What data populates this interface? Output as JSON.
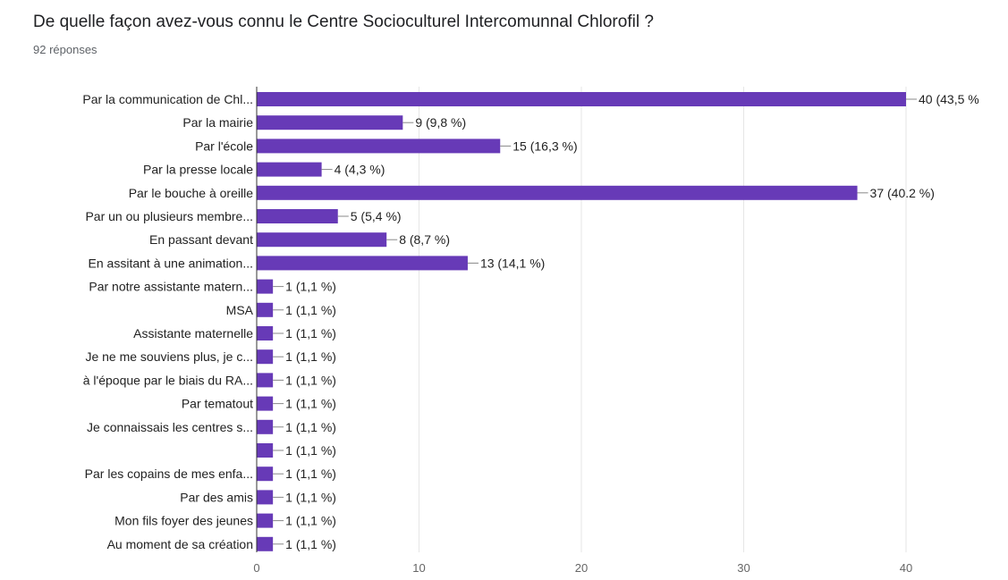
{
  "chart_data": {
    "type": "bar",
    "orientation": "horizontal",
    "title": "De quelle façon avez-vous connu le Centre Socioculturel Intercomunnal Chlorofil ?",
    "subtitle": "92 réponses",
    "categories": [
      "Par la communication de Chl...",
      "Par la mairie",
      "Par l'école",
      "Par la presse locale",
      "Par le bouche à oreille",
      "Par un ou plusieurs membre...",
      "En passant devant",
      "En assitant à une animation...",
      "Par notre assistante matern...",
      "MSA",
      "Assistante maternelle",
      "Je ne me souviens plus, je c...",
      "à l'époque par le biais du RA...",
      "Par tematout",
      "Je connaissais les centres s...",
      "",
      "Par les copains de mes enfa...",
      "Par des amis",
      "Mon fils foyer des jeunes",
      "Au moment de sa création"
    ],
    "values": [
      40,
      9,
      15,
      4,
      37,
      5,
      8,
      13,
      1,
      1,
      1,
      1,
      1,
      1,
      1,
      1,
      1,
      1,
      1,
      1
    ],
    "data_labels": [
      "40 (43,5 %",
      "9 (9,8 %)",
      "15 (16,3 %)",
      "4 (4,3 %)",
      "37 (40.2 %)",
      "5 (5,4 %)",
      "8 (8,7 %)",
      "13 (14,1 %)",
      "1 (1,1 %)",
      "1 (1,1 %)",
      "1 (1,1 %)",
      "1 (1,1 %)",
      "1 (1,1 %)",
      "1 (1,1 %)",
      "1 (1,1 %)",
      "1 (1,1 %)",
      "1 (1,1 %)",
      "1 (1,1 %)",
      "1 (1,1 %)",
      "1 (1,1 %)"
    ],
    "xlim": [
      0,
      40
    ],
    "xticks": [
      0,
      10,
      20,
      30,
      40
    ],
    "grid": true,
    "legend": "none",
    "bar_color": "#673ab7",
    "grid_color": "#e6e6e6"
  }
}
